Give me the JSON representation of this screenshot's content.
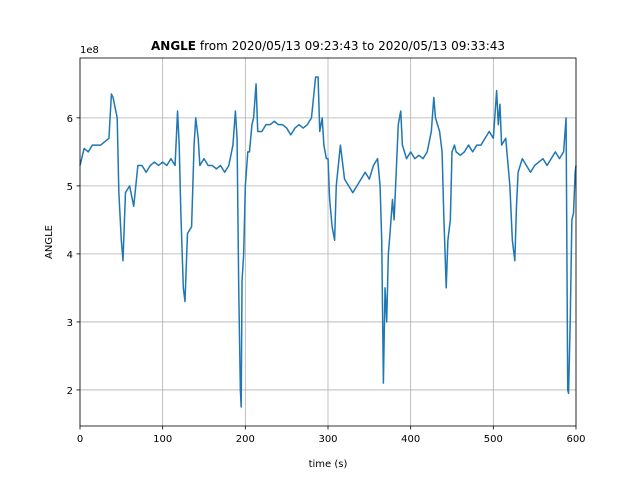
{
  "chart_data": {
    "type": "line",
    "title_bold": "ANGLE",
    "title": "from 2020/05/13 09:23:43 to 2020/05/13 09:33:43",
    "y_offset_label": "1e8",
    "xlabel": "time (s)",
    "ylabel": "ANGLE",
    "xlim": [
      0,
      600
    ],
    "xticks": [
      0,
      100,
      200,
      300,
      400,
      500,
      600
    ],
    "ylim": [
      1.47,
      6.88
    ],
    "yticks": [
      2,
      3,
      4,
      5,
      6
    ],
    "grid": true,
    "series": [
      {
        "name": "ANGLE",
        "color": "#1f77b4",
        "x": [
          0,
          5,
          10,
          15,
          20,
          25,
          30,
          35,
          38,
          40,
          45,
          47,
          50,
          52,
          55,
          60,
          65,
          70,
          75,
          80,
          85,
          90,
          95,
          100,
          105,
          110,
          115,
          118,
          120,
          122,
          125,
          127,
          130,
          135,
          138,
          140,
          143,
          145,
          150,
          155,
          160,
          165,
          170,
          175,
          180,
          185,
          188,
          190,
          192,
          194,
          195,
          196,
          198,
          200,
          203,
          205,
          208,
          210,
          213,
          215,
          220,
          225,
          230,
          235,
          240,
          245,
          250,
          255,
          260,
          265,
          270,
          275,
          280,
          285,
          288,
          290,
          293,
          295,
          298,
          300,
          302,
          305,
          308,
          310,
          315,
          320,
          325,
          330,
          335,
          340,
          345,
          350,
          355,
          360,
          363,
          365,
          367,
          369,
          371,
          373,
          375,
          378,
          380,
          385,
          388,
          390,
          395,
          400,
          405,
          410,
          415,
          420,
          425,
          428,
          430,
          435,
          438,
          440,
          443,
          445,
          448,
          450,
          453,
          455,
          460,
          465,
          470,
          475,
          480,
          485,
          490,
          495,
          500,
          504,
          506,
          508,
          510,
          515,
          520,
          523,
          526,
          528,
          530,
          535,
          540,
          545,
          550,
          555,
          560,
          565,
          570,
          575,
          580,
          585,
          588,
          589,
          590,
          591,
          593,
          595,
          597,
          599,
          600
        ],
        "values": [
          5.3,
          5.55,
          5.5,
          5.6,
          5.6,
          5.6,
          5.65,
          5.7,
          6.35,
          6.3,
          6.0,
          4.9,
          4.2,
          3.9,
          4.9,
          5.0,
          4.7,
          5.3,
          5.3,
          5.2,
          5.3,
          5.35,
          5.3,
          5.35,
          5.3,
          5.4,
          5.3,
          6.1,
          5.6,
          4.6,
          3.5,
          3.3,
          4.3,
          4.4,
          5.6,
          6.0,
          5.7,
          5.3,
          5.4,
          5.3,
          5.3,
          5.25,
          5.3,
          5.2,
          5.3,
          5.6,
          6.1,
          5.7,
          3.5,
          2.0,
          1.75,
          3.6,
          4.0,
          5.0,
          5.5,
          5.5,
          5.9,
          6.0,
          6.5,
          5.8,
          5.8,
          5.9,
          5.9,
          5.95,
          5.9,
          5.9,
          5.85,
          5.75,
          5.85,
          5.9,
          5.85,
          5.9,
          6.0,
          6.6,
          6.6,
          5.8,
          6.0,
          5.6,
          5.4,
          5.4,
          4.8,
          4.4,
          4.2,
          5.0,
          5.6,
          5.1,
          5.0,
          4.9,
          5.0,
          5.1,
          5.2,
          5.1,
          5.3,
          5.4,
          5.0,
          4.2,
          2.1,
          3.5,
          3.0,
          4.0,
          4.3,
          4.8,
          4.5,
          5.9,
          6.1,
          5.6,
          5.4,
          5.5,
          5.4,
          5.45,
          5.4,
          5.5,
          5.8,
          6.3,
          6.0,
          5.8,
          5.5,
          4.6,
          3.5,
          4.2,
          4.5,
          5.5,
          5.6,
          5.5,
          5.45,
          5.5,
          5.6,
          5.5,
          5.6,
          5.6,
          5.7,
          5.8,
          5.7,
          6.4,
          5.9,
          6.2,
          5.6,
          5.7,
          5.0,
          4.2,
          3.9,
          4.7,
          5.2,
          5.4,
          5.3,
          5.2,
          5.3,
          5.35,
          5.4,
          5.3,
          5.4,
          5.5,
          5.4,
          5.5,
          6.0,
          4.0,
          2.0,
          1.95,
          3.0,
          4.5,
          4.6,
          5.2,
          5.3
        ]
      }
    ]
  }
}
